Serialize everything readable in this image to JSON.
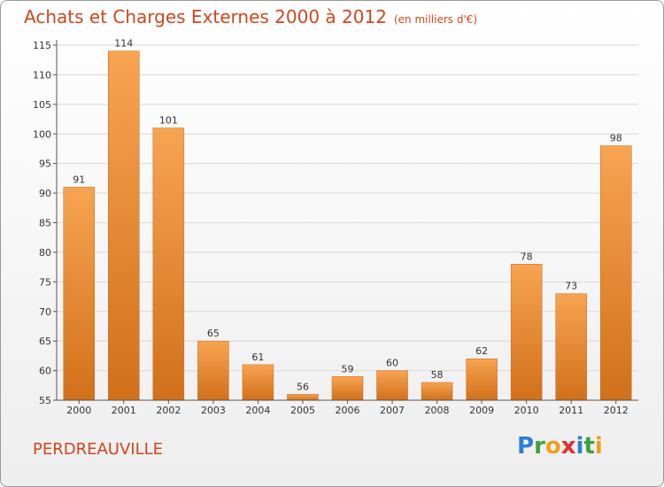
{
  "header": {
    "title": "Achats et Charges Externes 2000 à 2012",
    "subtitle": "(en milliers d'€)"
  },
  "footer": {
    "city": "PERDREAUVILLE",
    "logo_letters": [
      {
        "char": "P",
        "color": "#2e7fd0"
      },
      {
        "char": "r",
        "color": "#3f9f3f"
      },
      {
        "char": "o",
        "color": "#f0a020"
      },
      {
        "char": "x",
        "color": "#e03030"
      },
      {
        "char": "i",
        "color": "#2e7fd0"
      },
      {
        "char": "t",
        "color": "#3f9f3f"
      },
      {
        "char": "i",
        "color": "#f0a020"
      }
    ]
  },
  "colors": {
    "title": "#d0461d",
    "bar_top": "#f7a452",
    "bar_bottom": "#d2701a",
    "grid": "#d8d8d8",
    "axis": "#555555"
  },
  "chart_data": {
    "type": "bar",
    "title": "Achats et Charges Externes 2000 à 2012",
    "subtitle": "(en milliers d'€)",
    "categories": [
      "2000",
      "2001",
      "2002",
      "2003",
      "2004",
      "2005",
      "2006",
      "2007",
      "2008",
      "2009",
      "2010",
      "2011",
      "2012"
    ],
    "values": [
      91,
      114,
      101,
      65,
      61,
      56,
      59,
      60,
      58,
      62,
      78,
      73,
      98
    ],
    "ylim": [
      55,
      115
    ],
    "yticks": [
      55,
      60,
      65,
      70,
      75,
      80,
      85,
      90,
      95,
      100,
      105,
      110,
      115
    ],
    "grid": true,
    "legend": "none"
  }
}
